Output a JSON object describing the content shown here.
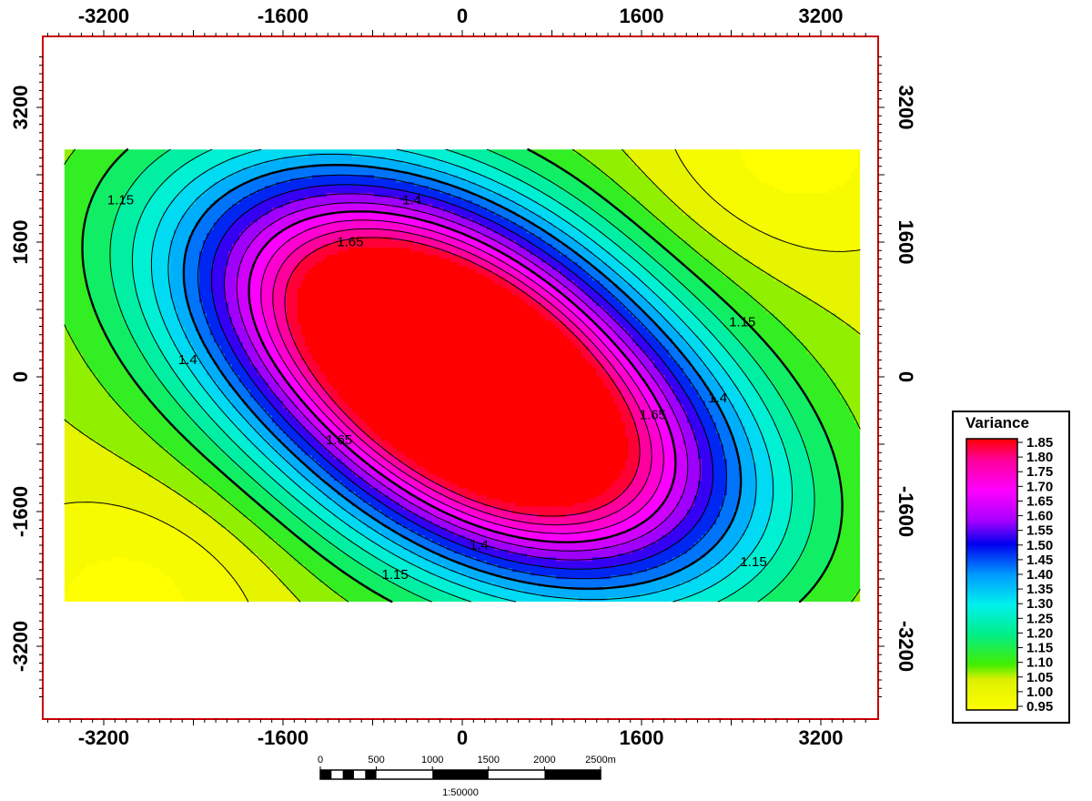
{
  "chart_data": {
    "type": "heatmap",
    "title": "",
    "xlabel": "",
    "ylabel": "",
    "xlim": [
      -3900,
      3900
    ],
    "ylim": [
      -3800,
      3800
    ],
    "data_extent": {
      "x": [
        -3550,
        3550
      ],
      "y": [
        -2670,
        2700
      ]
    },
    "grid": false,
    "x_ticks": [
      "-3200",
      "-1600",
      "0",
      "1600",
      "3200"
    ],
    "y_ticks": [
      "3200",
      "1600",
      "0",
      "-1600",
      "-3200"
    ],
    "field": {
      "description_values": "sum of two elongated Gaussian peaks plus a smaller central peak",
      "base": 1.03,
      "peaks": [
        {
          "cx": -650,
          "cy": 900,
          "amp": 0.82,
          "sx": 1500,
          "sy": 1100,
          "rot": -35
        },
        {
          "cx": 650,
          "cy": -900,
          "amp": 0.82,
          "sx": 1500,
          "sy": 1100,
          "rot": -35
        },
        {
          "cx": 0,
          "cy": 0,
          "amp": 0.1,
          "sx": 450,
          "sy": 450,
          "rot": 0
        }
      ],
      "corner_highs": [
        {
          "cx": 2950,
          "cy": 2650,
          "amp": -0.1
        },
        {
          "cx": -2950,
          "cy": -2650,
          "amp": -0.1
        }
      ]
    },
    "contour_levels": [
      1.0,
      1.05,
      1.1,
      1.15,
      1.2,
      1.25,
      1.3,
      1.35,
      1.4,
      1.45,
      1.5,
      1.55,
      1.6,
      1.65,
      1.7,
      1.75,
      1.8
    ],
    "bold_levels": [
      1.15,
      1.4,
      1.65
    ],
    "contour_labels": [
      {
        "text": "1.15",
        "x": -3050,
        "y": 2050
      },
      {
        "text": "1.4",
        "x": -450,
        "y": 2050
      },
      {
        "text": "1.65",
        "x": -1000,
        "y": 1550
      },
      {
        "text": "1.15",
        "x": 2500,
        "y": 600
      },
      {
        "text": "1.4",
        "x": -2450,
        "y": 150
      },
      {
        "text": "1.4",
        "x": 2280,
        "y": -300
      },
      {
        "text": "1.65",
        "x": 1700,
        "y": -500
      },
      {
        "text": "1.65",
        "x": -1100,
        "y": -800
      },
      {
        "text": "1.4",
        "x": 150,
        "y": -2050
      },
      {
        "text": "1.15",
        "x": -600,
        "y": -2400
      },
      {
        "text": "1.15",
        "x": 2600,
        "y": -2250
      }
    ],
    "legend": {
      "title": "Variance",
      "values": [
        "1.85",
        "1.80",
        "1.75",
        "1.70",
        "1.65",
        "1.60",
        "1.55",
        "1.50",
        "1.45",
        "1.40",
        "1.35",
        "1.30",
        "1.25",
        "1.20",
        "1.15",
        "1.10",
        "1.05",
        "1.00",
        "0.95"
      ],
      "min": 0.95,
      "max": 1.85,
      "colors": {
        "0.95": "#ffff00",
        "1.05": "#ddf000",
        "1.10": "#44ee00",
        "1.20": "#00ee88",
        "1.30": "#00f0ee",
        "1.40": "#0099ff",
        "1.50": "#0000ee",
        "1.58": "#aa00ff",
        "1.68": "#ff00ff",
        "1.78": "#ff0099",
        "1.85": "#ff0000"
      }
    }
  },
  "scale_bar": {
    "labels": [
      "0",
      "500",
      "1000",
      "1500",
      "2000",
      "2500m"
    ],
    "ratio": "1:50000"
  },
  "frame_color": "#cc0000"
}
